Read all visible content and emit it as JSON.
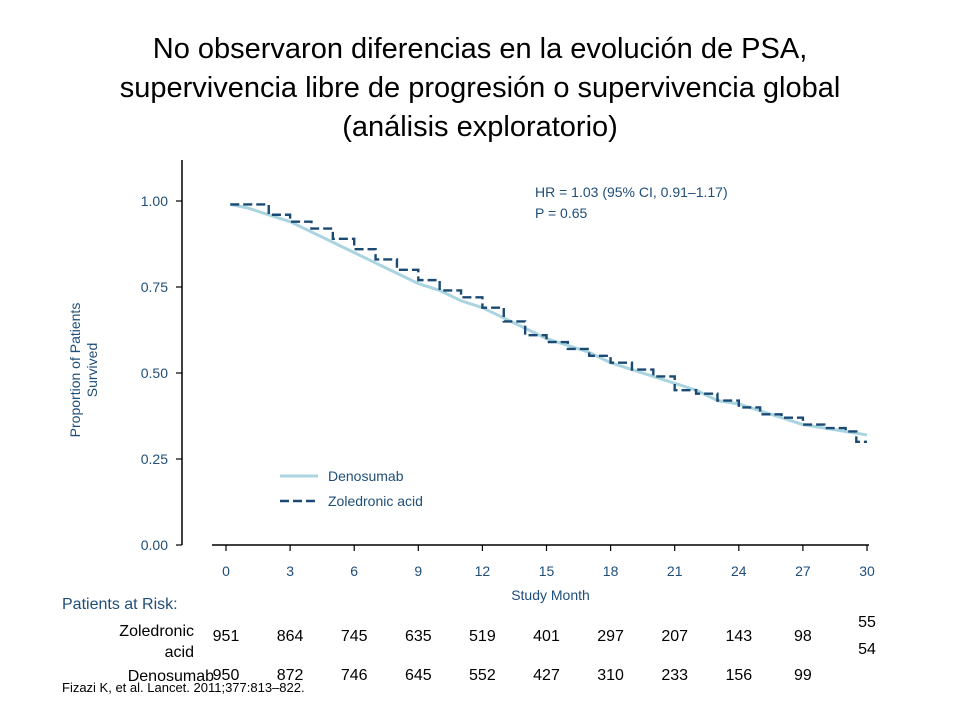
{
  "title_lines": [
    "No observaron diferencias en la evolución de PSA,",
    "supervivencia libre de progresión o supervivencia global",
    "(análisis exploratorio)"
  ],
  "chart_data": {
    "type": "line",
    "xlabel": "Study Month",
    "ylabel_lines": [
      "Proportion of Patients",
      "Survived"
    ],
    "xlim": [
      0,
      30
    ],
    "ylim": [
      0,
      1.1
    ],
    "xticks": [
      "0",
      "3",
      "6",
      "9",
      "12",
      "15",
      "18",
      "21",
      "24",
      "27",
      "30"
    ],
    "yticks": [
      "0.00",
      "0.25",
      "0.50",
      "0.75",
      "1.00"
    ],
    "annotation_lines": [
      "HR = 1.03 (95% CI, 0.91–1.17)",
      "P = 0.65"
    ],
    "legend_position": "bottom-left",
    "series": [
      {
        "name": "Denosumab",
        "color": "#a9d4e0",
        "style": "solid",
        "x": [
          0.2,
          1,
          2,
          3,
          4,
          5,
          6,
          7,
          8,
          9,
          10,
          11,
          12,
          13,
          14,
          15,
          16,
          17,
          18,
          19,
          20,
          21,
          22,
          23,
          24,
          25,
          26,
          27,
          28,
          29,
          30
        ],
        "y": [
          0.99,
          0.98,
          0.96,
          0.94,
          0.91,
          0.88,
          0.85,
          0.82,
          0.79,
          0.76,
          0.74,
          0.71,
          0.69,
          0.66,
          0.63,
          0.6,
          0.58,
          0.56,
          0.53,
          0.51,
          0.49,
          0.47,
          0.45,
          0.42,
          0.41,
          0.39,
          0.37,
          0.35,
          0.34,
          0.33,
          0.32
        ]
      },
      {
        "name": "Zoledronic acid",
        "color": "#1a4a73",
        "style": "dashed",
        "x": [
          0.2,
          1,
          2,
          3,
          4,
          5,
          6,
          7,
          8,
          9,
          10,
          11,
          12,
          13,
          14,
          15,
          16,
          17,
          18,
          19,
          20,
          21,
          22,
          23,
          24,
          25,
          26,
          27,
          28,
          29,
          29.5,
          30
        ],
        "y": [
          0.99,
          0.99,
          0.96,
          0.94,
          0.92,
          0.89,
          0.86,
          0.83,
          0.8,
          0.77,
          0.74,
          0.72,
          0.69,
          0.65,
          0.61,
          0.59,
          0.57,
          0.55,
          0.53,
          0.51,
          0.49,
          0.45,
          0.44,
          0.42,
          0.4,
          0.38,
          0.37,
          0.35,
          0.34,
          0.33,
          0.3,
          0.3
        ]
      }
    ]
  },
  "risk_table": {
    "heading": "Patients at Risk:",
    "rows": [
      {
        "name_lines": [
          "Zoledronic",
          "acid"
        ],
        "values": [
          "951",
          "864",
          "745",
          "635",
          "519",
          "401",
          "297",
          "207",
          "143",
          "98",
          "55"
        ]
      },
      {
        "name_lines": [
          "Denosumab"
        ],
        "values": [
          "950",
          "872",
          "746",
          "645",
          "552",
          "427",
          "310",
          "233",
          "156",
          "99",
          "54"
        ]
      }
    ]
  },
  "citation": "Fizazi K, et al. Lancet. 2011;377:813–822."
}
